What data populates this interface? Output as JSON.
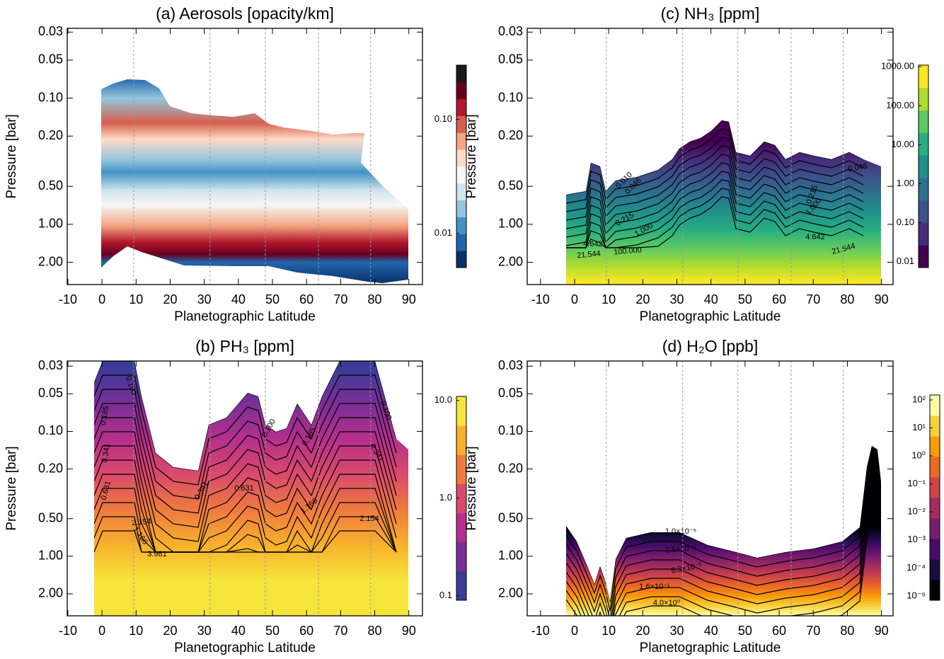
{
  "chart_data": [
    {
      "type": "contour",
      "title": "(a) Aerosols [opacity/km]",
      "xlabel": "Planetographic Latitude",
      "ylabel": "Pressure [bar]",
      "xlim": [
        -10.2,
        94.0
      ],
      "xticks": [
        -10,
        0,
        10,
        20,
        30,
        40,
        50,
        60,
        70,
        80,
        90
      ],
      "ylim": [
        3,
        0.028
      ],
      "log_y": true,
      "yticks": [
        0.03,
        0.05,
        {
          "value": 0.1,
          "label": "0.10"
        },
        {
          "value": 0.2,
          "label": "0.20"
        },
        {
          "value": 0.5,
          "label": "0.50"
        },
        {
          "value": 1,
          "label": "1.00"
        },
        {
          "value": 2,
          "label": "2.00"
        }
      ],
      "reference_lines": [
        9.3,
        31.7,
        47.9,
        63.5,
        78.8
      ],
      "colorbar": {
        "lim": [
          0.005,
          0.3
        ],
        "log": true,
        "ticks": [
          {
            "value": 0.1,
            "label": "0.10"
          },
          0.01
        ],
        "colors": [
          "#08306b",
          "#2166ac",
          "#4393c3",
          "#92c5de",
          "#d1e5f0",
          "#f7f7f7",
          "#fddbc7",
          "#f4a582",
          "#d6604d",
          "#b2182b",
          "#67001f",
          "#1a1a1a"
        ]
      },
      "contour_labels": []
    },
    {
      "type": "contour",
      "title": "(b) PH₃ [ppm]",
      "xlabel": "Planetographic Latitude",
      "ylabel": "Pressure [bar]",
      "xlim": [
        -10.2,
        94.0
      ],
      "xticks": [
        -10,
        0,
        10,
        20,
        30,
        40,
        50,
        60,
        70,
        80,
        90
      ],
      "ylim": [
        3,
        0.0273
      ],
      "log_y": true,
      "yticks": [
        0.03,
        0.05,
        {
          "value": 0.1,
          "label": "0.10"
        },
        {
          "value": 0.2,
          "label": "0.20"
        },
        {
          "value": 0.5,
          "label": "0.50"
        },
        {
          "value": 1,
          "label": "1.00"
        },
        {
          "value": 2,
          "label": "2.00"
        }
      ],
      "reference_lines": [
        9.3,
        31.7,
        47.9,
        63.5,
        78.8
      ],
      "colorbar": {
        "lim": [
          0.09,
          11
        ],
        "log": true,
        "ticks": [
          {
            "value": 10,
            "label": "10.0"
          },
          {
            "value": 1,
            "label": "1.0"
          },
          0.1
        ],
        "colors": [
          "#3b3b98",
          "#7a2f97",
          "#b52f8c",
          "#d94a6b",
          "#ef7a3f",
          "#f8b12c",
          "#f6e53a"
        ]
      },
      "contour_labels": [
        "0.100",
        "0.185",
        "0.341",
        "0.631",
        "1.166",
        "2.154",
        "3.981",
        "0.631",
        "0.341",
        "0.100",
        "1.166",
        "0.185",
        "0.100",
        "0.341",
        "2.154"
      ]
    },
    {
      "type": "contour",
      "title": "(c) NH₃ [ppm]",
      "xlabel": "Planetographic Latitude",
      "ylabel": "Pressure [bar]",
      "xlim": [
        -13.9,
        93.4
      ],
      "xticks": [
        -10,
        0,
        10,
        20,
        30,
        40,
        50,
        60,
        70,
        80,
        90
      ],
      "ylim": [
        3,
        0.028
      ],
      "log_y": true,
      "yticks": [
        0.03,
        0.05,
        {
          "value": 0.1,
          "label": "0.10"
        },
        {
          "value": 0.2,
          "label": "0.20"
        },
        {
          "value": 0.5,
          "label": "0.50"
        },
        {
          "value": 1,
          "label": "1.00"
        },
        {
          "value": 2,
          "label": "2.00"
        }
      ],
      "reference_lines": [
        9.3,
        31.7,
        47.9,
        63.5,
        78.8
      ],
      "colorbar": {
        "lim": [
          0.007,
          1100
        ],
        "log": true,
        "ticks": [
          {
            "value": 1000,
            "label": "1000.00"
          },
          {
            "value": 100,
            "label": "100.00"
          },
          {
            "value": 10,
            "label": "10.00"
          },
          {
            "value": 1,
            "label": "1.00"
          },
          {
            "value": 0.1,
            "label": "0.10"
          },
          0.01
        ],
        "colors": [
          "#440154",
          "#472c7a",
          "#3b528b",
          "#2c728e",
          "#21918c",
          "#28ae80",
          "#5ec962",
          "#addc30",
          "#fde725"
        ]
      },
      "contour_labels": [
        "0.010",
        "0.046",
        "0.215",
        "1.000",
        "4.642",
        "21.544",
        "100.000",
        "0.046",
        "0.215",
        "1.000",
        "4.642",
        "21.544"
      ]
    },
    {
      "type": "contour",
      "title": "(d) H₂O [ppb]",
      "xlabel": "Planetographic Latitude",
      "ylabel": "Pressure [bar]",
      "xlim": [
        -13.9,
        93.4
      ],
      "xticks": [
        -10,
        0,
        10,
        20,
        30,
        40,
        50,
        60,
        70,
        80,
        90
      ],
      "ylim": [
        3,
        0.0273
      ],
      "log_y": true,
      "yticks": [
        0.03,
        0.05,
        {
          "value": 0.1,
          "label": "0.10"
        },
        {
          "value": 0.2,
          "label": "0.20"
        },
        {
          "value": 0.5,
          "label": "0.50"
        },
        {
          "value": 1,
          "label": "1.00"
        },
        {
          "value": 2,
          "label": "2.00"
        }
      ],
      "reference_lines": [
        9.3,
        31.7,
        47.9,
        63.5,
        78.8
      ],
      "colorbar": {
        "lim": [
          7e-06,
          150
        ],
        "log": true,
        "ticks": [
          {
            "value": 100,
            "label": "10²"
          },
          {
            "value": 10,
            "label": "10¹"
          },
          {
            "value": 1,
            "label": "10⁰"
          },
          {
            "value": 0.1,
            "label": "10⁻¹"
          },
          {
            "value": 0.01,
            "label": "10⁻²"
          },
          {
            "value": 0.001,
            "label": "10⁻³"
          },
          {
            "value": 0.0001,
            "label": "10⁻⁴"
          },
          {
            "value": 1e-05,
            "label": "10⁻⁵"
          }
        ],
        "colors": [
          "#000004",
          "#1b0c41",
          "#4a0c6b",
          "#781c6d",
          "#a52c60",
          "#cf4446",
          "#ed6925",
          "#fb9b06",
          "#f7d13d",
          "#fcffa4"
        ]
      },
      "contour_labels": [
        "1.0×10⁻⁵",
        "2.5×10⁻⁴",
        "6.3×10⁻³",
        "1.6×10⁻¹",
        "4.0×10⁰"
      ]
    }
  ]
}
